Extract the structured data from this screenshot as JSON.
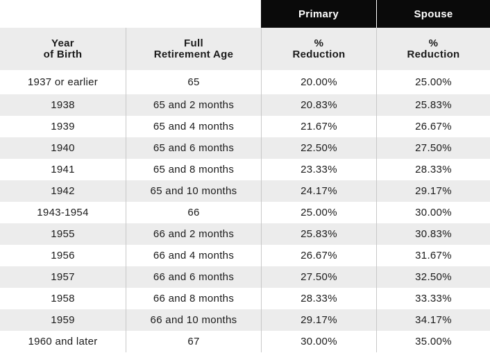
{
  "group_headers": {
    "primary": "Primary",
    "spouse": "Spouse"
  },
  "column_headers": {
    "year": "Year\nof Birth",
    "fra": "Full\nRetirement Age",
    "primary_reduction": "%\nReduction",
    "spouse_reduction": "%\nReduction"
  },
  "rows": [
    {
      "year": "1937 or earlier",
      "fra": "65",
      "primary": "20.00%",
      "spouse": "25.00%"
    },
    {
      "year": "1938",
      "fra": "65 and 2 months",
      "primary": "20.83%",
      "spouse": "25.83%"
    },
    {
      "year": "1939",
      "fra": "65 and 4 months",
      "primary": "21.67%",
      "spouse": "26.67%"
    },
    {
      "year": "1940",
      "fra": "65 and 6 months",
      "primary": "22.50%",
      "spouse": "27.50%"
    },
    {
      "year": "1941",
      "fra": "65 and 8 months",
      "primary": "23.33%",
      "spouse": "28.33%"
    },
    {
      "year": "1942",
      "fra": "65 and 10 months",
      "primary": "24.17%",
      "spouse": "29.17%"
    },
    {
      "year": "1943-1954",
      "fra": "66",
      "primary": "25.00%",
      "spouse": "30.00%"
    },
    {
      "year": "1955",
      "fra": "66 and 2 months",
      "primary": "25.83%",
      "spouse": "30.83%"
    },
    {
      "year": "1956",
      "fra": "66 and 4 months",
      "primary": "26.67%",
      "spouse": "31.67%"
    },
    {
      "year": "1957",
      "fra": "66 and 6 months",
      "primary": "27.50%",
      "spouse": "32.50%"
    },
    {
      "year": "1958",
      "fra": "66 and 8 months",
      "primary": "28.33%",
      "spouse": "33.33%"
    },
    {
      "year": "1959",
      "fra": "66 and 10 months",
      "primary": "29.17%",
      "spouse": "34.17%"
    },
    {
      "year": "1960 and later",
      "fra": "67",
      "primary": "30.00%",
      "spouse": "35.00%"
    }
  ]
}
